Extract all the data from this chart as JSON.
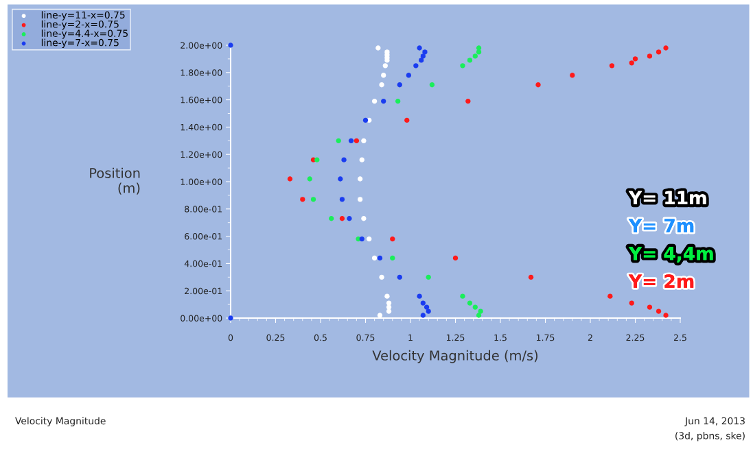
{
  "chart_data": {
    "type": "scatter",
    "xlabel": "Velocity Magnitude (m/s)",
    "ylabel": "Position\n(m)",
    "xlim": [
      0,
      2.5
    ],
    "xticks": [
      0,
      0.25,
      {
        "value": 0.5,
        "label": "0.5"
      },
      0.75,
      {
        "value": 1,
        "label": "1"
      },
      1.25,
      {
        "value": 1.5,
        "label": "1.5"
      },
      1.75,
      {
        "value": 2,
        "label": "2"
      },
      2.25,
      {
        "value": 2.5,
        "label": "2.5"
      }
    ],
    "ylim": [
      0,
      2
    ],
    "yticks": [
      {
        "value": 0,
        "label": "0.00e+00"
      },
      {
        "value": 0.2,
        "label": "2.00e-01"
      },
      {
        "value": 0.4,
        "label": "4.00e-01"
      },
      {
        "value": 0.6,
        "label": "6.00e-01"
      },
      {
        "value": 0.8,
        "label": "8.00e-01"
      },
      {
        "value": 1,
        "label": "1.00e+00"
      },
      {
        "value": 1.2,
        "label": "1.20e+00"
      },
      {
        "value": 1.4,
        "label": "1.40e+00"
      },
      {
        "value": 1.6,
        "label": "1.60e+00"
      },
      {
        "value": 1.8,
        "label": "1.80e+00"
      },
      {
        "value": 2,
        "label": "2.00e+00"
      }
    ],
    "grid": false,
    "legend": "top left",
    "marker": "circle",
    "series": [
      {
        "name": "line-y=11-x=0.75",
        "color": "#ffffff",
        "x": [
          0.82,
          0.87,
          0.87,
          0.87,
          0.87,
          0.86,
          0.85,
          0.84,
          0.8,
          0.77,
          0.74,
          0.73,
          0.72,
          0.72,
          0.74,
          0.77,
          0.8,
          0.84,
          0.87,
          0.88,
          0.88,
          0.88,
          0.83
        ],
        "values": [
          1.98,
          1.95,
          1.93,
          1.91,
          1.89,
          1.85,
          1.78,
          1.71,
          1.59,
          1.45,
          1.3,
          1.16,
          1.02,
          0.87,
          0.73,
          0.58,
          0.44,
          0.3,
          0.16,
          0.11,
          0.08,
          0.05,
          0.02
        ]
      },
      {
        "name": "line-y=2-x=0.75",
        "color": "#ff1a1a",
        "x": [
          2.42,
          2.38,
          2.33,
          2.25,
          2.23,
          2.12,
          1.9,
          1.71,
          1.32,
          0.98,
          0.7,
          0.46,
          0.33,
          0.4,
          0.62,
          0.9,
          1.25,
          1.67,
          2.11,
          2.23,
          2.33,
          2.38,
          2.42
        ],
        "values": [
          1.98,
          1.95,
          1.92,
          1.9,
          1.87,
          1.85,
          1.78,
          1.71,
          1.59,
          1.45,
          1.3,
          1.16,
          1.02,
          0.87,
          0.73,
          0.58,
          0.44,
          0.3,
          0.16,
          0.11,
          0.08,
          0.05,
          0.02
        ]
      },
      {
        "name": "line-y=4.4-x=0.75",
        "color": "#1aee5a",
        "x": [
          1.38,
          1.38,
          1.36,
          1.33,
          1.29,
          1.12,
          0.93,
          0.6,
          0.48,
          0.44,
          0.46,
          0.56,
          0.71,
          0.9,
          1.1,
          1.29,
          1.33,
          1.36,
          1.39,
          1.38
        ],
        "values": [
          1.98,
          1.95,
          1.92,
          1.89,
          1.85,
          1.71,
          1.59,
          1.3,
          1.16,
          1.02,
          0.87,
          0.73,
          0.58,
          0.44,
          0.3,
          0.16,
          0.11,
          0.08,
          0.05,
          0.02
        ]
      },
      {
        "name": "line-y=7-x=0.75",
        "color": "#1a3cf0",
        "x": [
          0,
          1.05,
          1.08,
          1.07,
          1.06,
          1.03,
          0.99,
          0.94,
          0.85,
          0.75,
          0.67,
          0.63,
          0.61,
          0.62,
          0.66,
          0.73,
          0.83,
          0.94,
          1.05,
          1.07,
          1.09,
          1.1,
          1.07,
          0
        ],
        "values": [
          2.0,
          1.98,
          1.95,
          1.92,
          1.89,
          1.85,
          1.78,
          1.71,
          1.59,
          1.45,
          1.3,
          1.16,
          1.02,
          0.87,
          0.73,
          0.58,
          0.44,
          0.3,
          0.16,
          0.11,
          0.08,
          0.05,
          0.02,
          0
        ]
      }
    ],
    "annotations": [
      "Y= 11m",
      "Y= 7m",
      "Y= 4,4m",
      "Y= 2m",
      "Velocity Magnitude",
      "Jun 14, 2013",
      "(3d, pbns, ske)"
    ]
  }
}
